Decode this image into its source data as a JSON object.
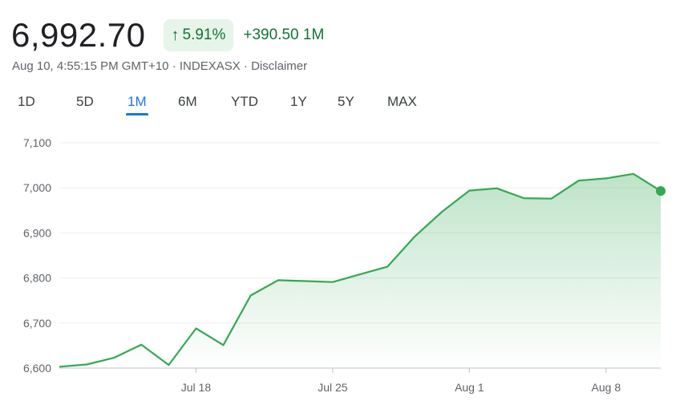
{
  "quote": {
    "price": "6,992.70",
    "percent_change": "5.91%",
    "arrow": "↑",
    "abs_change": "+390.50",
    "period": "1M",
    "timestamp": "Aug 10, 4:55:15 PM GMT+10",
    "sep1": " · ",
    "exchange": "INDEXASX",
    "sep2": " · ",
    "disclaimer": "Disclaimer"
  },
  "tabs": [
    {
      "label": "1D"
    },
    {
      "label": "5D"
    },
    {
      "label": "1M",
      "active": true
    },
    {
      "label": "6M"
    },
    {
      "label": "YTD"
    },
    {
      "label": "1Y"
    },
    {
      "label": "5Y"
    },
    {
      "label": "MAX"
    }
  ],
  "colors": {
    "line": "#34a853",
    "positive": "#137333",
    "accent": "#1a73e8"
  },
  "chart_data": {
    "type": "line",
    "yticks": [
      6600,
      6700,
      6800,
      6900,
      7000,
      7100
    ],
    "ytick_labels": [
      "6,600",
      "6,700",
      "6,800",
      "6,900",
      "7,000",
      "7,100"
    ],
    "ylim": [
      6600,
      7100
    ],
    "xlim": [
      0,
      22
    ],
    "xticks": [
      {
        "label": "Jul 18",
        "x": 5
      },
      {
        "label": "Jul 25",
        "x": 10
      },
      {
        "label": "Aug 1",
        "x": 15
      },
      {
        "label": "Aug 8",
        "x": 20
      }
    ],
    "x": [
      0,
      1,
      2,
      3,
      4,
      5,
      6,
      7,
      8,
      9,
      10,
      11,
      12,
      13,
      14,
      15,
      16,
      17,
      18,
      19,
      20,
      21,
      22
    ],
    "values": [
      6603,
      6608,
      6623,
      6652,
      6607,
      6688,
      6651,
      6761,
      6795,
      6793,
      6791,
      6808,
      6825,
      6892,
      6947,
      6994,
      6999,
      6977,
      6976,
      7016,
      7021,
      7031,
      6993
    ]
  }
}
